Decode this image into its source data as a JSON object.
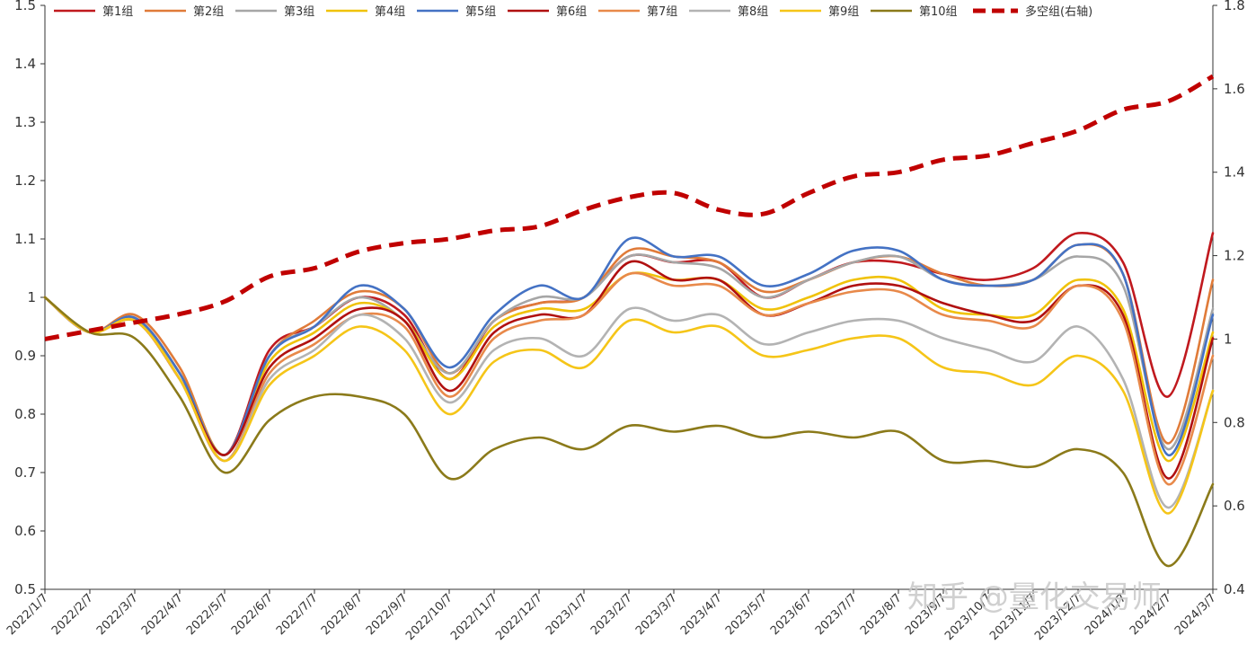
{
  "chart_data": {
    "type": "line",
    "title": "",
    "xlabel": "",
    "ylabel": "",
    "ylim": [
      0.5,
      1.5
    ],
    "y2lim": [
      0.4,
      1.8
    ],
    "yticks": [
      "0.5",
      "0.6",
      "0.7",
      "0.8",
      "0.9",
      "1",
      "1.1",
      "1.2",
      "1.3",
      "1.4",
      "1.5"
    ],
    "y2ticks": [
      "0.4",
      "0.6",
      "0.8",
      "1",
      "1.2",
      "1.4",
      "1.6",
      "1.8"
    ],
    "categories": [
      "2022/1/7",
      "2022/2/7",
      "2022/3/7",
      "2022/4/7",
      "2022/5/7",
      "2022/6/7",
      "2022/7/7",
      "2022/8/7",
      "2022/9/7",
      "2022/10/7",
      "2022/11/7",
      "2022/12/7",
      "2023/1/7",
      "2023/2/7",
      "2023/3/7",
      "2023/4/7",
      "2023/5/7",
      "2023/6/7",
      "2023/7/7",
      "2023/8/7",
      "2023/9/7",
      "2023/10/7",
      "2023/11/7",
      "2023/12/7",
      "2024/1/7",
      "2024/2/7",
      "2024/3/7"
    ],
    "legend_position": "top",
    "series": [
      {
        "name": "第1组",
        "axis": "left",
        "color": "#c0191e",
        "dash": false,
        "values": [
          1.0,
          0.94,
          0.965,
          0.87,
          0.73,
          0.91,
          0.95,
          1.0,
          0.97,
          0.86,
          0.96,
          0.99,
          1.0,
          1.07,
          1.06,
          1.06,
          1.0,
          1.03,
          1.06,
          1.06,
          1.04,
          1.03,
          1.05,
          1.11,
          1.06,
          0.83,
          1.11
        ]
      },
      {
        "name": "第2组",
        "axis": "left",
        "color": "#e07b39",
        "dash": false,
        "values": [
          1.0,
          0.94,
          0.97,
          0.88,
          0.73,
          0.9,
          0.96,
          1.01,
          0.98,
          0.87,
          0.96,
          0.99,
          1.0,
          1.08,
          1.07,
          1.06,
          1.01,
          1.03,
          1.06,
          1.07,
          1.04,
          1.02,
          1.03,
          1.09,
          1.04,
          0.75,
          1.03
        ]
      },
      {
        "name": "第3组",
        "axis": "left",
        "color": "#a6a6a6",
        "dash": false,
        "values": [
          1.0,
          0.94,
          0.965,
          0.87,
          0.73,
          0.9,
          0.95,
          1.0,
          0.96,
          0.87,
          0.96,
          1.0,
          1.0,
          1.07,
          1.06,
          1.05,
          1.0,
          1.03,
          1.06,
          1.07,
          1.03,
          1.02,
          1.03,
          1.07,
          1.02,
          0.74,
          0.98
        ]
      },
      {
        "name": "第4组",
        "axis": "left",
        "color": "#f0c20a",
        "dash": false,
        "values": [
          1.0,
          0.94,
          0.96,
          0.87,
          0.73,
          0.89,
          0.94,
          0.99,
          0.96,
          0.86,
          0.95,
          0.98,
          0.98,
          1.04,
          1.03,
          1.03,
          0.98,
          1.0,
          1.03,
          1.03,
          0.98,
          0.97,
          0.97,
          1.03,
          0.98,
          0.72,
          0.94
        ]
      },
      {
        "name": "第5组",
        "axis": "left",
        "color": "#4472c4",
        "dash": false,
        "values": [
          1.0,
          0.94,
          0.965,
          0.87,
          0.73,
          0.9,
          0.95,
          1.02,
          0.98,
          0.88,
          0.97,
          1.02,
          1.0,
          1.1,
          1.07,
          1.07,
          1.02,
          1.04,
          1.08,
          1.08,
          1.03,
          1.02,
          1.03,
          1.09,
          1.04,
          0.73,
          0.97
        ]
      },
      {
        "name": "第6组",
        "axis": "left",
        "color": "#b01010",
        "dash": false,
        "values": [
          1.0,
          0.94,
          0.96,
          0.86,
          0.73,
          0.88,
          0.93,
          0.98,
          0.96,
          0.84,
          0.94,
          0.97,
          0.97,
          1.06,
          1.03,
          1.03,
          0.97,
          0.99,
          1.02,
          1.02,
          0.99,
          0.97,
          0.96,
          1.02,
          0.97,
          0.69,
          0.93
        ]
      },
      {
        "name": "第7组",
        "axis": "left",
        "color": "#e8894a",
        "dash": false,
        "values": [
          1.0,
          0.94,
          0.96,
          0.86,
          0.72,
          0.87,
          0.92,
          0.97,
          0.95,
          0.83,
          0.93,
          0.96,
          0.97,
          1.04,
          1.02,
          1.02,
          0.97,
          0.99,
          1.01,
          1.01,
          0.97,
          0.96,
          0.95,
          1.02,
          0.96,
          0.68,
          0.9
        ]
      },
      {
        "name": "第8组",
        "axis": "left",
        "color": "#b3b3b3",
        "dash": false,
        "values": [
          1.0,
          0.94,
          0.96,
          0.86,
          0.72,
          0.86,
          0.91,
          0.97,
          0.93,
          0.82,
          0.91,
          0.93,
          0.9,
          0.98,
          0.96,
          0.97,
          0.92,
          0.94,
          0.96,
          0.96,
          0.93,
          0.91,
          0.89,
          0.95,
          0.86,
          0.64,
          0.84
        ]
      },
      {
        "name": "第9组",
        "axis": "left",
        "color": "#f5c518",
        "dash": false,
        "values": [
          1.0,
          0.94,
          0.96,
          0.86,
          0.72,
          0.85,
          0.9,
          0.95,
          0.91,
          0.8,
          0.89,
          0.91,
          0.88,
          0.96,
          0.94,
          0.95,
          0.9,
          0.91,
          0.93,
          0.93,
          0.88,
          0.87,
          0.85,
          0.9,
          0.84,
          0.63,
          0.84
        ]
      },
      {
        "name": "第10组",
        "axis": "left",
        "color": "#8b7a1a",
        "dash": false,
        "values": [
          1.0,
          0.94,
          0.93,
          0.83,
          0.7,
          0.79,
          0.83,
          0.83,
          0.8,
          0.69,
          0.74,
          0.76,
          0.74,
          0.78,
          0.77,
          0.78,
          0.76,
          0.77,
          0.76,
          0.77,
          0.72,
          0.72,
          0.71,
          0.74,
          0.7,
          0.54,
          0.68
        ]
      },
      {
        "name": "多空组(右轴)",
        "axis": "right",
        "color": "#c00000",
        "dash": true,
        "values": [
          1.0,
          1.02,
          1.04,
          1.06,
          1.09,
          1.15,
          1.17,
          1.21,
          1.23,
          1.24,
          1.26,
          1.27,
          1.31,
          1.34,
          1.35,
          1.31,
          1.3,
          1.35,
          1.39,
          1.4,
          1.43,
          1.44,
          1.47,
          1.5,
          1.55,
          1.57,
          1.63
        ]
      }
    ]
  },
  "watermark": "知乎 @量化交易师"
}
